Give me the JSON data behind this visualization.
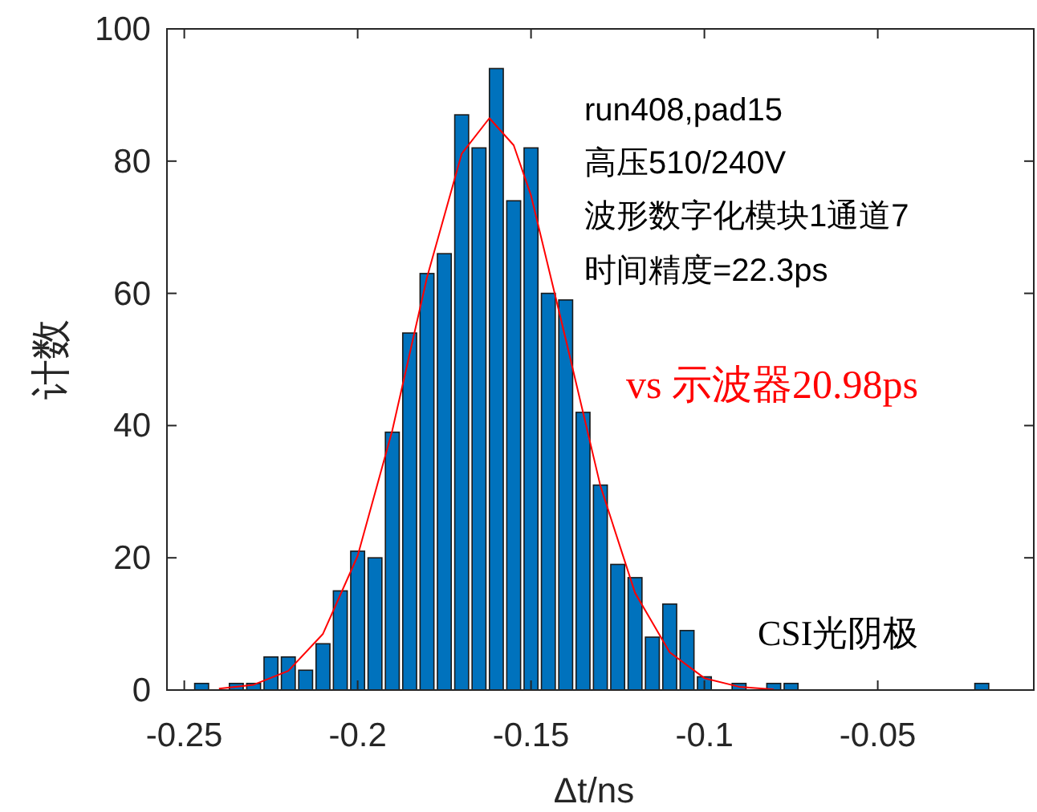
{
  "chart_data": {
    "type": "histogram",
    "xlabel": "Δt/ns",
    "ylabel": "计数",
    "bins": [
      -0.2475,
      -0.2425,
      -0.2375,
      -0.2325,
      -0.2275,
      -0.2225,
      -0.2175,
      -0.2125,
      -0.2075,
      -0.2025,
      -0.1975,
      -0.1925,
      -0.1875,
      -0.1825,
      -0.1775,
      -0.1725,
      -0.1675,
      -0.1625,
      -0.1575,
      -0.1525,
      -0.1475,
      -0.1425,
      -0.1375,
      -0.1325,
      -0.1275,
      -0.1225,
      -0.1175,
      -0.1125,
      -0.1075,
      -0.1025,
      -0.0975,
      -0.0925,
      -0.0875,
      -0.0825,
      -0.0775,
      -0.0725,
      -0.0675,
      -0.0625,
      -0.0575,
      -0.0525,
      -0.0475,
      -0.0425,
      -0.0375,
      -0.0325,
      -0.0275,
      -0.0225,
      -0.0175
    ],
    "values": [
      1,
      0,
      1,
      1,
      5,
      5,
      3,
      7,
      15,
      21,
      20,
      39,
      54,
      63,
      66,
      87,
      82,
      94,
      74,
      82,
      60,
      59,
      42,
      31,
      19,
      17,
      8,
      13,
      9,
      2,
      0,
      1,
      0,
      1,
      1,
      0,
      0,
      0,
      0,
      0,
      0,
      0,
      0,
      0,
      0,
      1
    ],
    "color": "#0072bd",
    "series": [
      {
        "type": "line",
        "color": "#ff0000",
        "x": [
          -0.24,
          -0.23,
          -0.22,
          -0.21,
          -0.2,
          -0.19,
          -0.18,
          -0.17,
          -0.162,
          -0.155,
          -0.15,
          -0.14,
          -0.13,
          -0.12,
          -0.11,
          -0.1,
          -0.09,
          -0.08
        ],
        "values": [
          0.2,
          0.8,
          2.9,
          8.5,
          20.3,
          39.3,
          62.4,
          81.1,
          86.5,
          82.4,
          74.8,
          53.1,
          30.9,
          14.7,
          5.7,
          1.8,
          0.5,
          0.1
        ]
      }
    ],
    "xlim": [
      -0.255,
      -0.005
    ],
    "ylim": [
      0,
      100
    ],
    "xticks": [
      -0.25,
      -0.2,
      -0.15,
      -0.1,
      -0.05
    ],
    "yticks": [
      0,
      20,
      40,
      60,
      80,
      100
    ],
    "grid": false,
    "annotations": [
      "run408,pad15",
      "高压510/240V",
      "波形数字化模块1通道7",
      "时间精度=22.3ps",
      "vs 示波器20.98ps",
      "CSI光阴极"
    ]
  }
}
